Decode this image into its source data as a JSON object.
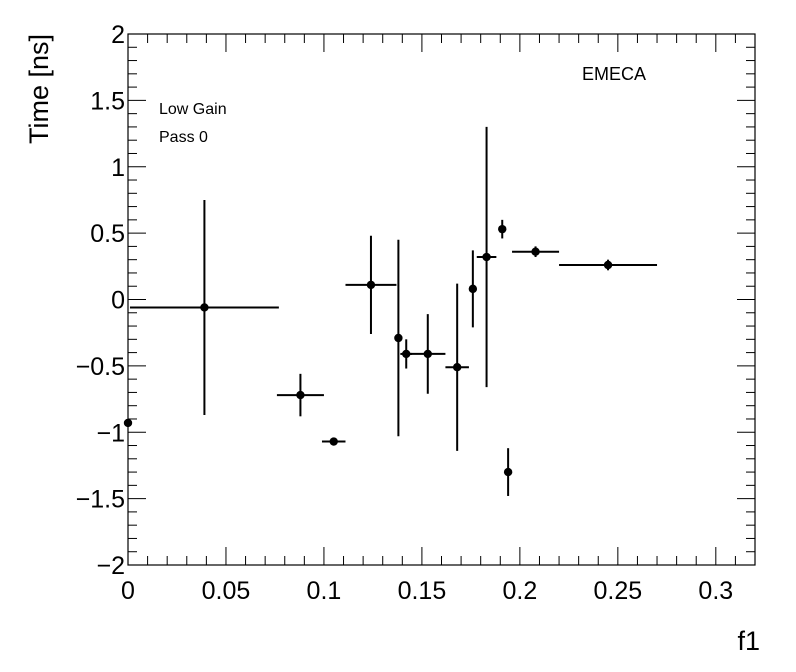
{
  "chart_data": {
    "type": "scatter",
    "title": "",
    "xlabel": "f1",
    "ylabel": "Time [ns]",
    "xlim": [
      0,
      0.32
    ],
    "ylim": [
      -2,
      2
    ],
    "grid": false,
    "annotations": [
      "EMECA",
      "Low Gain",
      "Pass 0"
    ],
    "xticks": [
      "0",
      "0.05",
      "0.1",
      "0.15",
      "0.2",
      "0.25",
      "0.3"
    ],
    "yticks": [
      "−2",
      "−1.5",
      "−1",
      "−0.5",
      "0",
      "0.5",
      "1",
      "1.5",
      "2"
    ],
    "points": [
      {
        "x": 0.0,
        "y": -0.93,
        "xerr": 0.0,
        "yerr": 0.03
      },
      {
        "x": 0.039,
        "y": -0.06,
        "xerr": 0.038,
        "yerr": 0.81
      },
      {
        "x": 0.088,
        "y": -0.72,
        "xerr": 0.012,
        "yerr": 0.16
      },
      {
        "x": 0.105,
        "y": -1.07,
        "xerr": 0.006,
        "yerr": 0.02
      },
      {
        "x": 0.124,
        "y": 0.11,
        "xerr": 0.013,
        "yerr": 0.37
      },
      {
        "x": 0.138,
        "y": -0.29,
        "xerr": 0.0,
        "yerr": 0.74
      },
      {
        "x": 0.142,
        "y": -0.41,
        "xerr": 0.003,
        "yerr": 0.11
      },
      {
        "x": 0.153,
        "y": -0.41,
        "xerr": 0.009,
        "yerr": 0.3
      },
      {
        "x": 0.168,
        "y": -0.51,
        "xerr": 0.006,
        "yerr": 0.63
      },
      {
        "x": 0.176,
        "y": 0.08,
        "xerr": 0.0,
        "yerr": 0.29
      },
      {
        "x": 0.183,
        "y": 0.32,
        "xerr": 0.005,
        "yerr": 0.98
      },
      {
        "x": 0.191,
        "y": 0.53,
        "xerr": 0.0,
        "yerr": 0.07
      },
      {
        "x": 0.194,
        "y": -1.3,
        "xerr": 0.0,
        "yerr": 0.18
      },
      {
        "x": 0.208,
        "y": 0.36,
        "xerr": 0.012,
        "yerr": 0.04
      },
      {
        "x": 0.245,
        "y": 0.26,
        "xerr": 0.025,
        "yerr": 0.04
      }
    ]
  }
}
